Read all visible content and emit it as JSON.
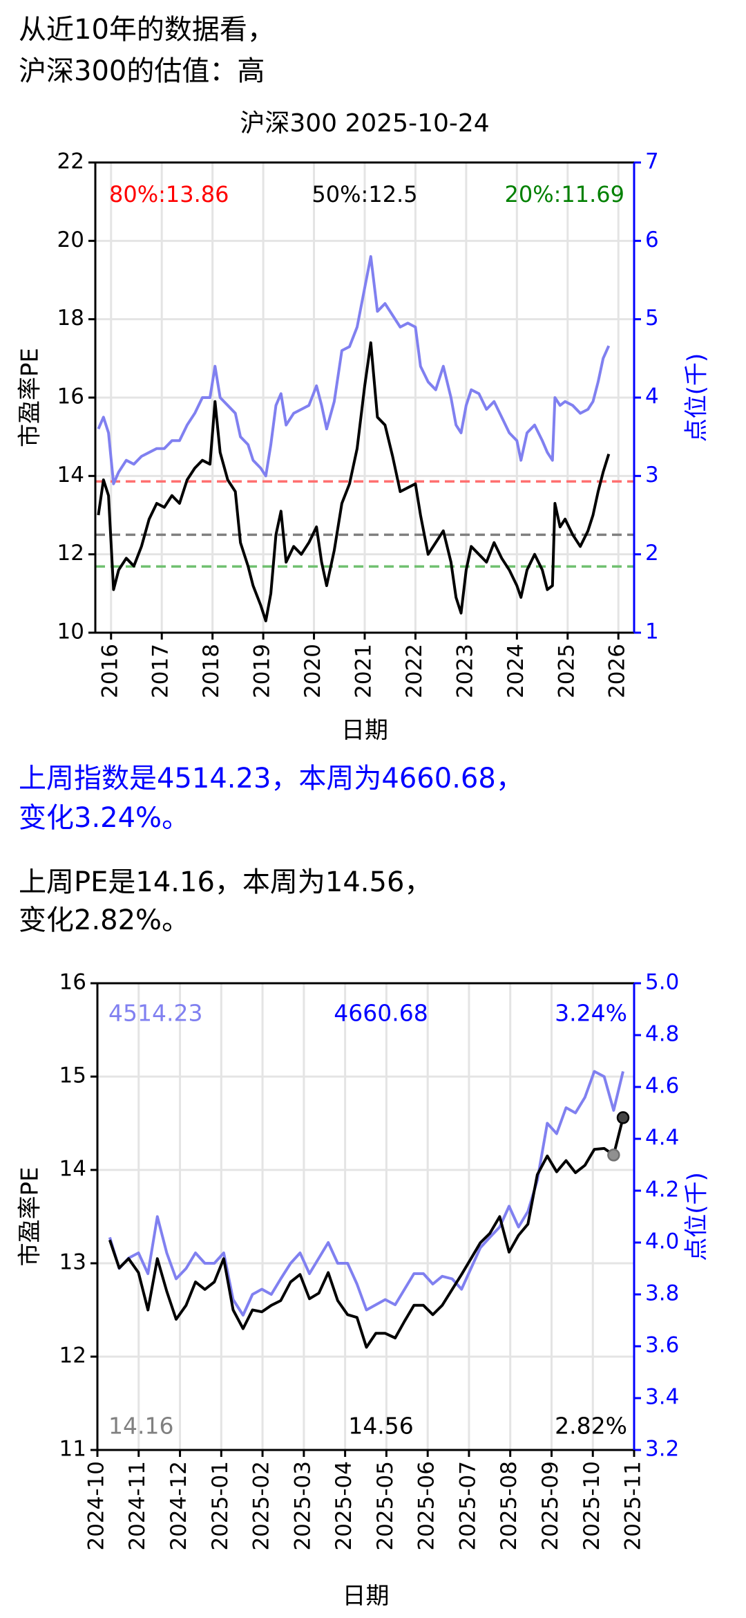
{
  "header": {
    "lines": [
      "从近10年的数据看，",
      "沪深300的估值：高"
    ]
  },
  "chart_data": [
    {
      "type": "line",
      "title": "沪深300 2025-10-24",
      "xlabel": "日期",
      "ylabel": "市盈率PE",
      "y2label": "点位(千)",
      "x": [
        2015.75,
        2015.85,
        2015.95,
        2016.05,
        2016.15,
        2016.3,
        2016.45,
        2016.6,
        2016.75,
        2016.9,
        2017.05,
        2017.2,
        2017.35,
        2017.5,
        2017.65,
        2017.8,
        2017.95,
        2018.05,
        2018.15,
        2018.3,
        2018.45,
        2018.55,
        2018.7,
        2018.8,
        2018.95,
        2019.05,
        2019.15,
        2019.25,
        2019.35,
        2019.45,
        2019.6,
        2019.75,
        2019.9,
        2020.05,
        2020.15,
        2020.25,
        2020.4,
        2020.55,
        2020.7,
        2020.85,
        2021.0,
        2021.12,
        2021.25,
        2021.4,
        2021.55,
        2021.7,
        2021.85,
        2022.0,
        2022.1,
        2022.25,
        2022.4,
        2022.55,
        2022.7,
        2022.8,
        2022.9,
        2023.0,
        2023.1,
        2023.25,
        2023.4,
        2023.55,
        2023.7,
        2023.85,
        2024.0,
        2024.08,
        2024.2,
        2024.35,
        2024.5,
        2024.6,
        2024.7,
        2024.75,
        2024.85,
        2024.95,
        2025.1,
        2025.25,
        2025.4,
        2025.5,
        2025.6,
        2025.7,
        2025.81
      ],
      "series": [
        {
          "color": "#000000",
          "axis": "y",
          "values": [
            13.0,
            13.9,
            13.5,
            11.1,
            11.6,
            11.9,
            11.7,
            12.2,
            12.9,
            13.3,
            13.2,
            13.5,
            13.3,
            13.9,
            14.2,
            14.4,
            14.3,
            15.9,
            14.6,
            13.9,
            13.6,
            12.3,
            11.7,
            11.2,
            10.7,
            10.3,
            11.0,
            12.5,
            13.1,
            11.8,
            12.2,
            12.0,
            12.3,
            12.7,
            11.8,
            11.2,
            12.1,
            13.3,
            13.8,
            14.7,
            16.3,
            17.4,
            15.5,
            15.3,
            14.5,
            13.6,
            13.7,
            13.8,
            13.0,
            12.0,
            12.3,
            12.6,
            11.8,
            10.9,
            10.5,
            11.6,
            12.2,
            12.0,
            11.8,
            12.3,
            11.9,
            11.6,
            11.2,
            10.9,
            11.6,
            12.0,
            11.6,
            11.1,
            11.2,
            13.3,
            12.7,
            12.9,
            12.5,
            12.2,
            12.6,
            13.0,
            13.6,
            14.1,
            14.56
          ]
        },
        {
          "color": "#8080f0",
          "axis": "y2",
          "values": [
            3.6,
            3.75,
            3.55,
            2.9,
            3.05,
            3.2,
            3.15,
            3.25,
            3.3,
            3.35,
            3.35,
            3.45,
            3.45,
            3.65,
            3.8,
            4.0,
            4.0,
            4.4,
            4.0,
            3.9,
            3.8,
            3.5,
            3.4,
            3.2,
            3.1,
            3.0,
            3.4,
            3.9,
            4.05,
            3.65,
            3.8,
            3.85,
            3.9,
            4.15,
            3.9,
            3.6,
            3.95,
            4.6,
            4.65,
            4.9,
            5.4,
            5.8,
            5.1,
            5.2,
            5.05,
            4.9,
            4.95,
            4.9,
            4.4,
            4.2,
            4.1,
            4.4,
            4.0,
            3.65,
            3.55,
            3.9,
            4.1,
            4.05,
            3.85,
            3.95,
            3.75,
            3.55,
            3.45,
            3.2,
            3.55,
            3.65,
            3.45,
            3.3,
            3.2,
            4.0,
            3.9,
            3.95,
            3.9,
            3.8,
            3.85,
            3.95,
            4.2,
            4.5,
            4.66
          ]
        }
      ],
      "reference_lines": [
        {
          "label": "80%:13.86",
          "value": 13.86,
          "color": "#ff7070",
          "text_color": "#ff0000",
          "position": "left"
        },
        {
          "label": "50%:12.5",
          "value": 12.5,
          "color": "#808080",
          "text_color": "#000000",
          "position": "center"
        },
        {
          "label": "20%:11.69",
          "value": 11.69,
          "color": "#70c070",
          "text_color": "#008000",
          "position": "right"
        }
      ],
      "xlim": [
        2015.69,
        2026.31
      ],
      "xticks": [
        2016,
        2017,
        2018,
        2019,
        2020,
        2021,
        2022,
        2023,
        2024,
        2025,
        2026
      ],
      "ylim": [
        10,
        22
      ],
      "yticks": [
        10,
        12,
        14,
        16,
        18,
        20,
        22
      ],
      "y2lim": [
        1,
        7
      ],
      "y2ticks": [
        1,
        2,
        3,
        4,
        5,
        6,
        7
      ],
      "y2color": "#0000ff",
      "grid": true
    },
    {
      "type": "line",
      "xlabel": "日期",
      "ylabel": "市盈率PE",
      "y2label": "点位(千)",
      "x": [
        2024.775,
        2024.794,
        2024.813,
        2024.833,
        2024.852,
        2024.871,
        2024.89,
        2024.909,
        2024.929,
        2024.948,
        2024.967,
        2024.986,
        2025.005,
        2025.024,
        2025.044,
        2025.063,
        2025.082,
        2025.101,
        2025.12,
        2025.14,
        2025.159,
        2025.178,
        2025.197,
        2025.216,
        2025.235,
        2025.255,
        2025.274,
        2025.293,
        2025.312,
        2025.331,
        2025.351,
        2025.37,
        2025.389,
        2025.408,
        2025.427,
        2025.446,
        2025.466,
        2025.485,
        2025.504,
        2025.523,
        2025.542,
        2025.562,
        2025.581,
        2025.6,
        2025.619,
        2025.638,
        2025.658,
        2025.677,
        2025.696,
        2025.715,
        2025.734,
        2025.753,
        2025.773,
        2025.792,
        2025.811
      ],
      "series": [
        {
          "color": "#000000",
          "axis": "y",
          "marker": "last-two",
          "values": [
            13.25,
            12.95,
            13.05,
            12.9,
            12.5,
            13.05,
            12.7,
            12.4,
            12.55,
            12.8,
            12.72,
            12.8,
            13.05,
            12.5,
            12.3,
            12.5,
            12.48,
            12.55,
            12.6,
            12.8,
            12.88,
            12.62,
            12.68,
            12.9,
            12.6,
            12.45,
            12.42,
            12.1,
            12.25,
            12.25,
            12.2,
            12.38,
            12.55,
            12.55,
            12.45,
            12.55,
            12.72,
            12.88,
            13.05,
            13.22,
            13.32,
            13.5,
            13.12,
            13.3,
            13.42,
            13.95,
            14.15,
            13.98,
            14.1,
            13.97,
            14.05,
            14.22,
            14.23,
            14.16,
            14.56
          ]
        },
        {
          "color": "#8080f0",
          "axis": "y2",
          "values": [
            4.02,
            3.9,
            3.94,
            3.96,
            3.88,
            4.1,
            3.96,
            3.86,
            3.9,
            3.96,
            3.92,
            3.92,
            3.96,
            3.78,
            3.72,
            3.8,
            3.82,
            3.8,
            3.86,
            3.92,
            3.96,
            3.88,
            3.94,
            4.0,
            3.92,
            3.92,
            3.84,
            3.74,
            3.76,
            3.78,
            3.76,
            3.82,
            3.88,
            3.88,
            3.84,
            3.87,
            3.86,
            3.82,
            3.9,
            3.98,
            4.02,
            4.06,
            4.14,
            4.06,
            4.12,
            4.24,
            4.46,
            4.42,
            4.52,
            4.5,
            4.56,
            4.66,
            4.64,
            4.51,
            4.66
          ]
        }
      ],
      "annotations": [
        {
          "text": "4514.23",
          "color": "#8080f0",
          "position": "top-left"
        },
        {
          "text": "4660.68",
          "color": "#0000ff",
          "position": "top-center"
        },
        {
          "text": "3.24%",
          "color": "#0000ff",
          "position": "top-right"
        },
        {
          "text": "14.16",
          "color": "#808080",
          "position": "bottom-left"
        },
        {
          "text": "14.56",
          "color": "#000000",
          "position": "bottom-center"
        },
        {
          "text": "2.82%",
          "color": "#000000",
          "position": "bottom-right"
        }
      ],
      "xlim": [
        2024.75,
        2025.8333
      ],
      "xticks": [
        {
          "value": 2024.75,
          "label": "2024-10"
        },
        {
          "value": 2024.8333,
          "label": "2024-11"
        },
        {
          "value": 2024.9167,
          "label": "2024-12"
        },
        {
          "value": 2025.0,
          "label": "2025-01"
        },
        {
          "value": 2025.0833,
          "label": "2025-02"
        },
        {
          "value": 2025.1667,
          "label": "2025-03"
        },
        {
          "value": 2025.25,
          "label": "2025-04"
        },
        {
          "value": 2025.3333,
          "label": "2025-05"
        },
        {
          "value": 2025.4167,
          "label": "2025-06"
        },
        {
          "value": 2025.5,
          "label": "2025-07"
        },
        {
          "value": 2025.5833,
          "label": "2025-08"
        },
        {
          "value": 2025.6667,
          "label": "2025-09"
        },
        {
          "value": 2025.75,
          "label": "2025-10"
        },
        {
          "value": 2025.8333,
          "label": "2025-11"
        }
      ],
      "ylim": [
        11,
        16
      ],
      "yticks": [
        11,
        12,
        13,
        14,
        15,
        16
      ],
      "y2lim": [
        3.2,
        5.0
      ],
      "y2ticks": [
        3.2,
        3.4,
        3.6,
        3.8,
        {
          "value": 4.0,
          "label": "4.0"
        },
        4.2,
        4.4,
        4.6,
        4.8,
        {
          "value": 5.0,
          "label": "5.0"
        }
      ],
      "y2color": "#0000ff",
      "grid": true
    }
  ],
  "notes": [
    {
      "color": "#0000ff",
      "lines": [
        "上周指数是4514.23，本周为4660.68，",
        "变化3.24%。"
      ]
    },
    {
      "color": "#000000",
      "lines": [
        "上周PE是14.16，本周为14.56，",
        "变化2.82%。"
      ]
    }
  ]
}
